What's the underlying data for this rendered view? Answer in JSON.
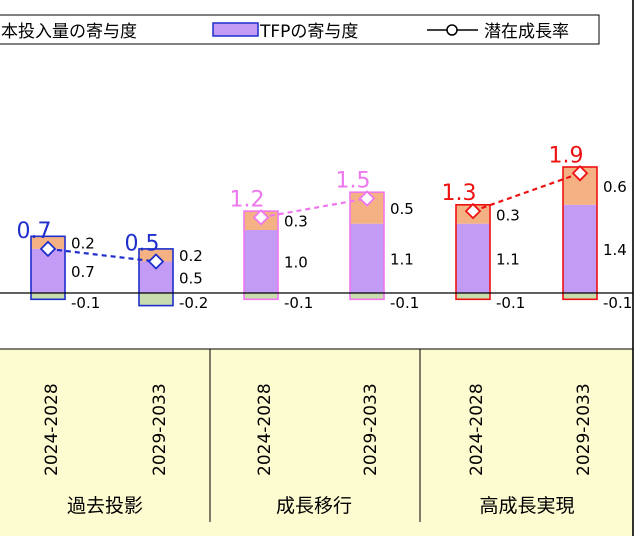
{
  "chart_data": {
    "type": "bar",
    "legend": {
      "placement": "top",
      "items": [
        {
          "key": "capital",
          "label": "本投入量の寄与度",
          "color": "#f4b183"
        },
        {
          "key": "tfp",
          "label": "TFPの寄与度",
          "color": "#c39bf5"
        },
        {
          "key": "growth",
          "label": "潜在成長率",
          "color": "#000000",
          "marker": "diamond"
        }
      ]
    },
    "ylim": [
      -0.3,
      2.3
    ],
    "grid": false,
    "scenarios": [
      {
        "name": "過去投影",
        "color": "#1f2fcc",
        "periods": [
          {
            "period": "2024-2028",
            "labor": -0.1,
            "tfp": 0.7,
            "capital": 0.2,
            "growth": 0.7
          },
          {
            "period": "2029-2033",
            "labor": -0.2,
            "tfp": 0.5,
            "capital": 0.2,
            "growth": 0.5
          }
        ]
      },
      {
        "name": "成長移行",
        "color": "#ee77ee",
        "periods": [
          {
            "period": "2024-2028",
            "labor": -0.1,
            "tfp": 1.0,
            "capital": 0.3,
            "growth": 1.2
          },
          {
            "period": "2029-2033",
            "labor": -0.1,
            "tfp": 1.1,
            "capital": 0.5,
            "growth": 1.5
          }
        ]
      },
      {
        "name": "高成長実現",
        "color": "#ee1111",
        "periods": [
          {
            "period": "2024-2028",
            "labor": -0.1,
            "tfp": 1.1,
            "capital": 0.3,
            "growth": 1.3
          },
          {
            "period": "2029-2033",
            "labor": -0.1,
            "tfp": 1.4,
            "capital": 0.6,
            "growth": 1.9
          }
        ]
      }
    ],
    "colors": {
      "labor": "#c9dcb0",
      "category_band": "#fdfbd0"
    }
  }
}
